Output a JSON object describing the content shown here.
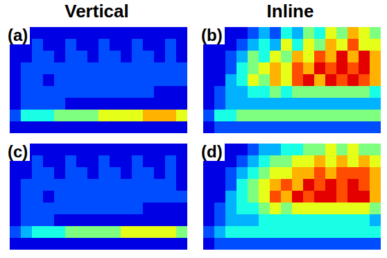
{
  "columns": [
    "Vertical",
    "Inline"
  ],
  "chart_data": [
    {
      "type": "heatmap",
      "title": "(a)",
      "tick_labels": false,
      "zlim": [
        0,
        10
      ],
      "cells": [
        [
          1,
          1,
          1,
          1,
          1,
          1,
          1,
          1,
          1,
          1,
          1,
          1,
          1,
          1,
          1,
          1
        ],
        [
          1,
          1,
          2,
          1,
          1,
          2,
          1,
          1,
          2,
          1,
          1,
          2,
          1,
          1,
          2,
          1
        ],
        [
          1,
          1,
          2,
          2,
          1,
          2,
          2,
          1,
          2,
          2,
          1,
          2,
          2,
          1,
          2,
          1
        ],
        [
          1,
          2,
          2,
          2,
          2,
          2,
          2,
          2,
          2,
          2,
          2,
          2,
          2,
          2,
          2,
          2
        ],
        [
          1,
          2,
          2,
          1,
          2,
          2,
          2,
          2,
          2,
          2,
          2,
          2,
          2,
          2,
          2,
          2
        ],
        [
          1,
          2,
          2,
          2,
          2,
          2,
          2,
          2,
          2,
          2,
          2,
          2,
          2,
          1,
          1,
          1
        ],
        [
          1,
          2,
          2,
          2,
          2,
          1,
          1,
          1,
          1,
          1,
          1,
          1,
          1,
          1,
          1,
          1
        ],
        [
          2,
          4,
          4,
          4,
          5,
          5,
          5,
          5,
          6,
          6,
          6,
          6,
          7,
          7,
          7,
          6
        ],
        [
          1,
          1,
          1,
          1,
          1,
          1,
          1,
          1,
          1,
          1,
          1,
          1,
          1,
          1,
          1,
          1
        ]
      ]
    },
    {
      "type": "heatmap",
      "title": "(b)",
      "tick_labels": false,
      "zlim": [
        0,
        10
      ],
      "cells": [
        [
          1,
          1,
          1,
          1,
          2,
          3,
          2,
          4,
          3,
          5,
          4,
          6,
          5,
          7,
          6,
          5
        ],
        [
          1,
          1,
          1,
          2,
          3,
          4,
          3,
          6,
          4,
          6,
          5,
          7,
          6,
          8,
          6,
          6
        ],
        [
          1,
          1,
          2,
          3,
          5,
          4,
          6,
          5,
          7,
          6,
          8,
          7,
          9,
          7,
          9,
          7
        ],
        [
          1,
          1,
          2,
          4,
          5,
          6,
          7,
          6,
          8,
          7,
          9,
          8,
          9,
          8,
          9,
          7
        ],
        [
          1,
          1,
          3,
          4,
          6,
          5,
          7,
          6,
          8,
          9,
          7,
          9,
          8,
          9,
          8,
          7
        ],
        [
          1,
          2,
          3,
          3,
          4,
          4,
          5,
          4,
          5,
          5,
          5,
          5,
          5,
          5,
          5,
          4
        ],
        [
          1,
          2,
          3,
          3,
          3,
          3,
          3,
          3,
          3,
          3,
          3,
          3,
          3,
          3,
          3,
          3
        ],
        [
          2,
          4,
          4,
          5,
          5,
          5,
          5,
          5,
          5,
          5,
          5,
          5,
          5,
          5,
          5,
          5
        ],
        [
          1,
          2,
          2,
          2,
          2,
          2,
          2,
          2,
          2,
          2,
          2,
          2,
          2,
          2,
          2,
          2
        ]
      ]
    },
    {
      "type": "heatmap",
      "title": "(c)",
      "tick_labels": false,
      "zlim": [
        0,
        10
      ],
      "cells": [
        [
          1,
          1,
          1,
          1,
          1,
          1,
          1,
          1,
          1,
          1,
          1,
          1,
          1,
          1,
          1,
          1
        ],
        [
          1,
          1,
          2,
          1,
          1,
          2,
          1,
          1,
          2,
          1,
          1,
          2,
          1,
          1,
          2,
          1
        ],
        [
          1,
          1,
          2,
          2,
          1,
          2,
          2,
          1,
          2,
          2,
          1,
          2,
          2,
          1,
          2,
          1
        ],
        [
          1,
          2,
          2,
          2,
          2,
          2,
          2,
          2,
          2,
          2,
          2,
          2,
          2,
          2,
          2,
          1
        ],
        [
          1,
          2,
          2,
          1,
          2,
          2,
          2,
          2,
          2,
          2,
          2,
          2,
          2,
          2,
          2,
          2
        ],
        [
          1,
          2,
          2,
          2,
          2,
          2,
          2,
          2,
          2,
          2,
          2,
          2,
          1,
          1,
          1,
          1
        ],
        [
          1,
          2,
          2,
          2,
          1,
          1,
          1,
          1,
          1,
          1,
          1,
          1,
          1,
          1,
          1,
          1
        ],
        [
          2,
          3,
          4,
          4,
          4,
          5,
          5,
          5,
          5,
          5,
          6,
          6,
          6,
          6,
          6,
          5
        ],
        [
          1,
          1,
          1,
          1,
          1,
          1,
          1,
          1,
          1,
          1,
          1,
          1,
          1,
          1,
          1,
          1
        ]
      ]
    },
    {
      "type": "heatmap",
      "title": "(d)",
      "tick_labels": false,
      "zlim": [
        0,
        10
      ],
      "cells": [
        [
          1,
          1,
          1,
          1,
          2,
          3,
          3,
          4,
          4,
          5,
          5,
          6,
          5,
          6,
          5,
          5
        ],
        [
          1,
          1,
          1,
          2,
          3,
          4,
          5,
          5,
          6,
          6,
          7,
          6,
          7,
          6,
          7,
          6
        ],
        [
          1,
          1,
          2,
          3,
          4,
          5,
          6,
          6,
          7,
          7,
          8,
          7,
          8,
          8,
          8,
          7
        ],
        [
          1,
          1,
          2,
          4,
          5,
          6,
          7,
          8,
          7,
          9,
          8,
          9,
          8,
          9,
          8,
          7
        ],
        [
          1,
          1,
          3,
          4,
          5,
          6,
          8,
          7,
          9,
          8,
          9,
          9,
          8,
          9,
          9,
          7
        ],
        [
          1,
          2,
          3,
          4,
          4,
          5,
          6,
          5,
          6,
          6,
          6,
          6,
          6,
          6,
          6,
          5
        ],
        [
          1,
          2,
          3,
          3,
          3,
          4,
          4,
          4,
          4,
          4,
          4,
          4,
          4,
          4,
          4,
          3
        ],
        [
          2,
          3,
          4,
          4,
          4,
          4,
          4,
          4,
          4,
          4,
          4,
          4,
          4,
          4,
          4,
          4
        ],
        [
          1,
          2,
          2,
          2,
          2,
          2,
          2,
          2,
          2,
          2,
          2,
          2,
          2,
          2,
          2,
          2
        ]
      ]
    }
  ]
}
